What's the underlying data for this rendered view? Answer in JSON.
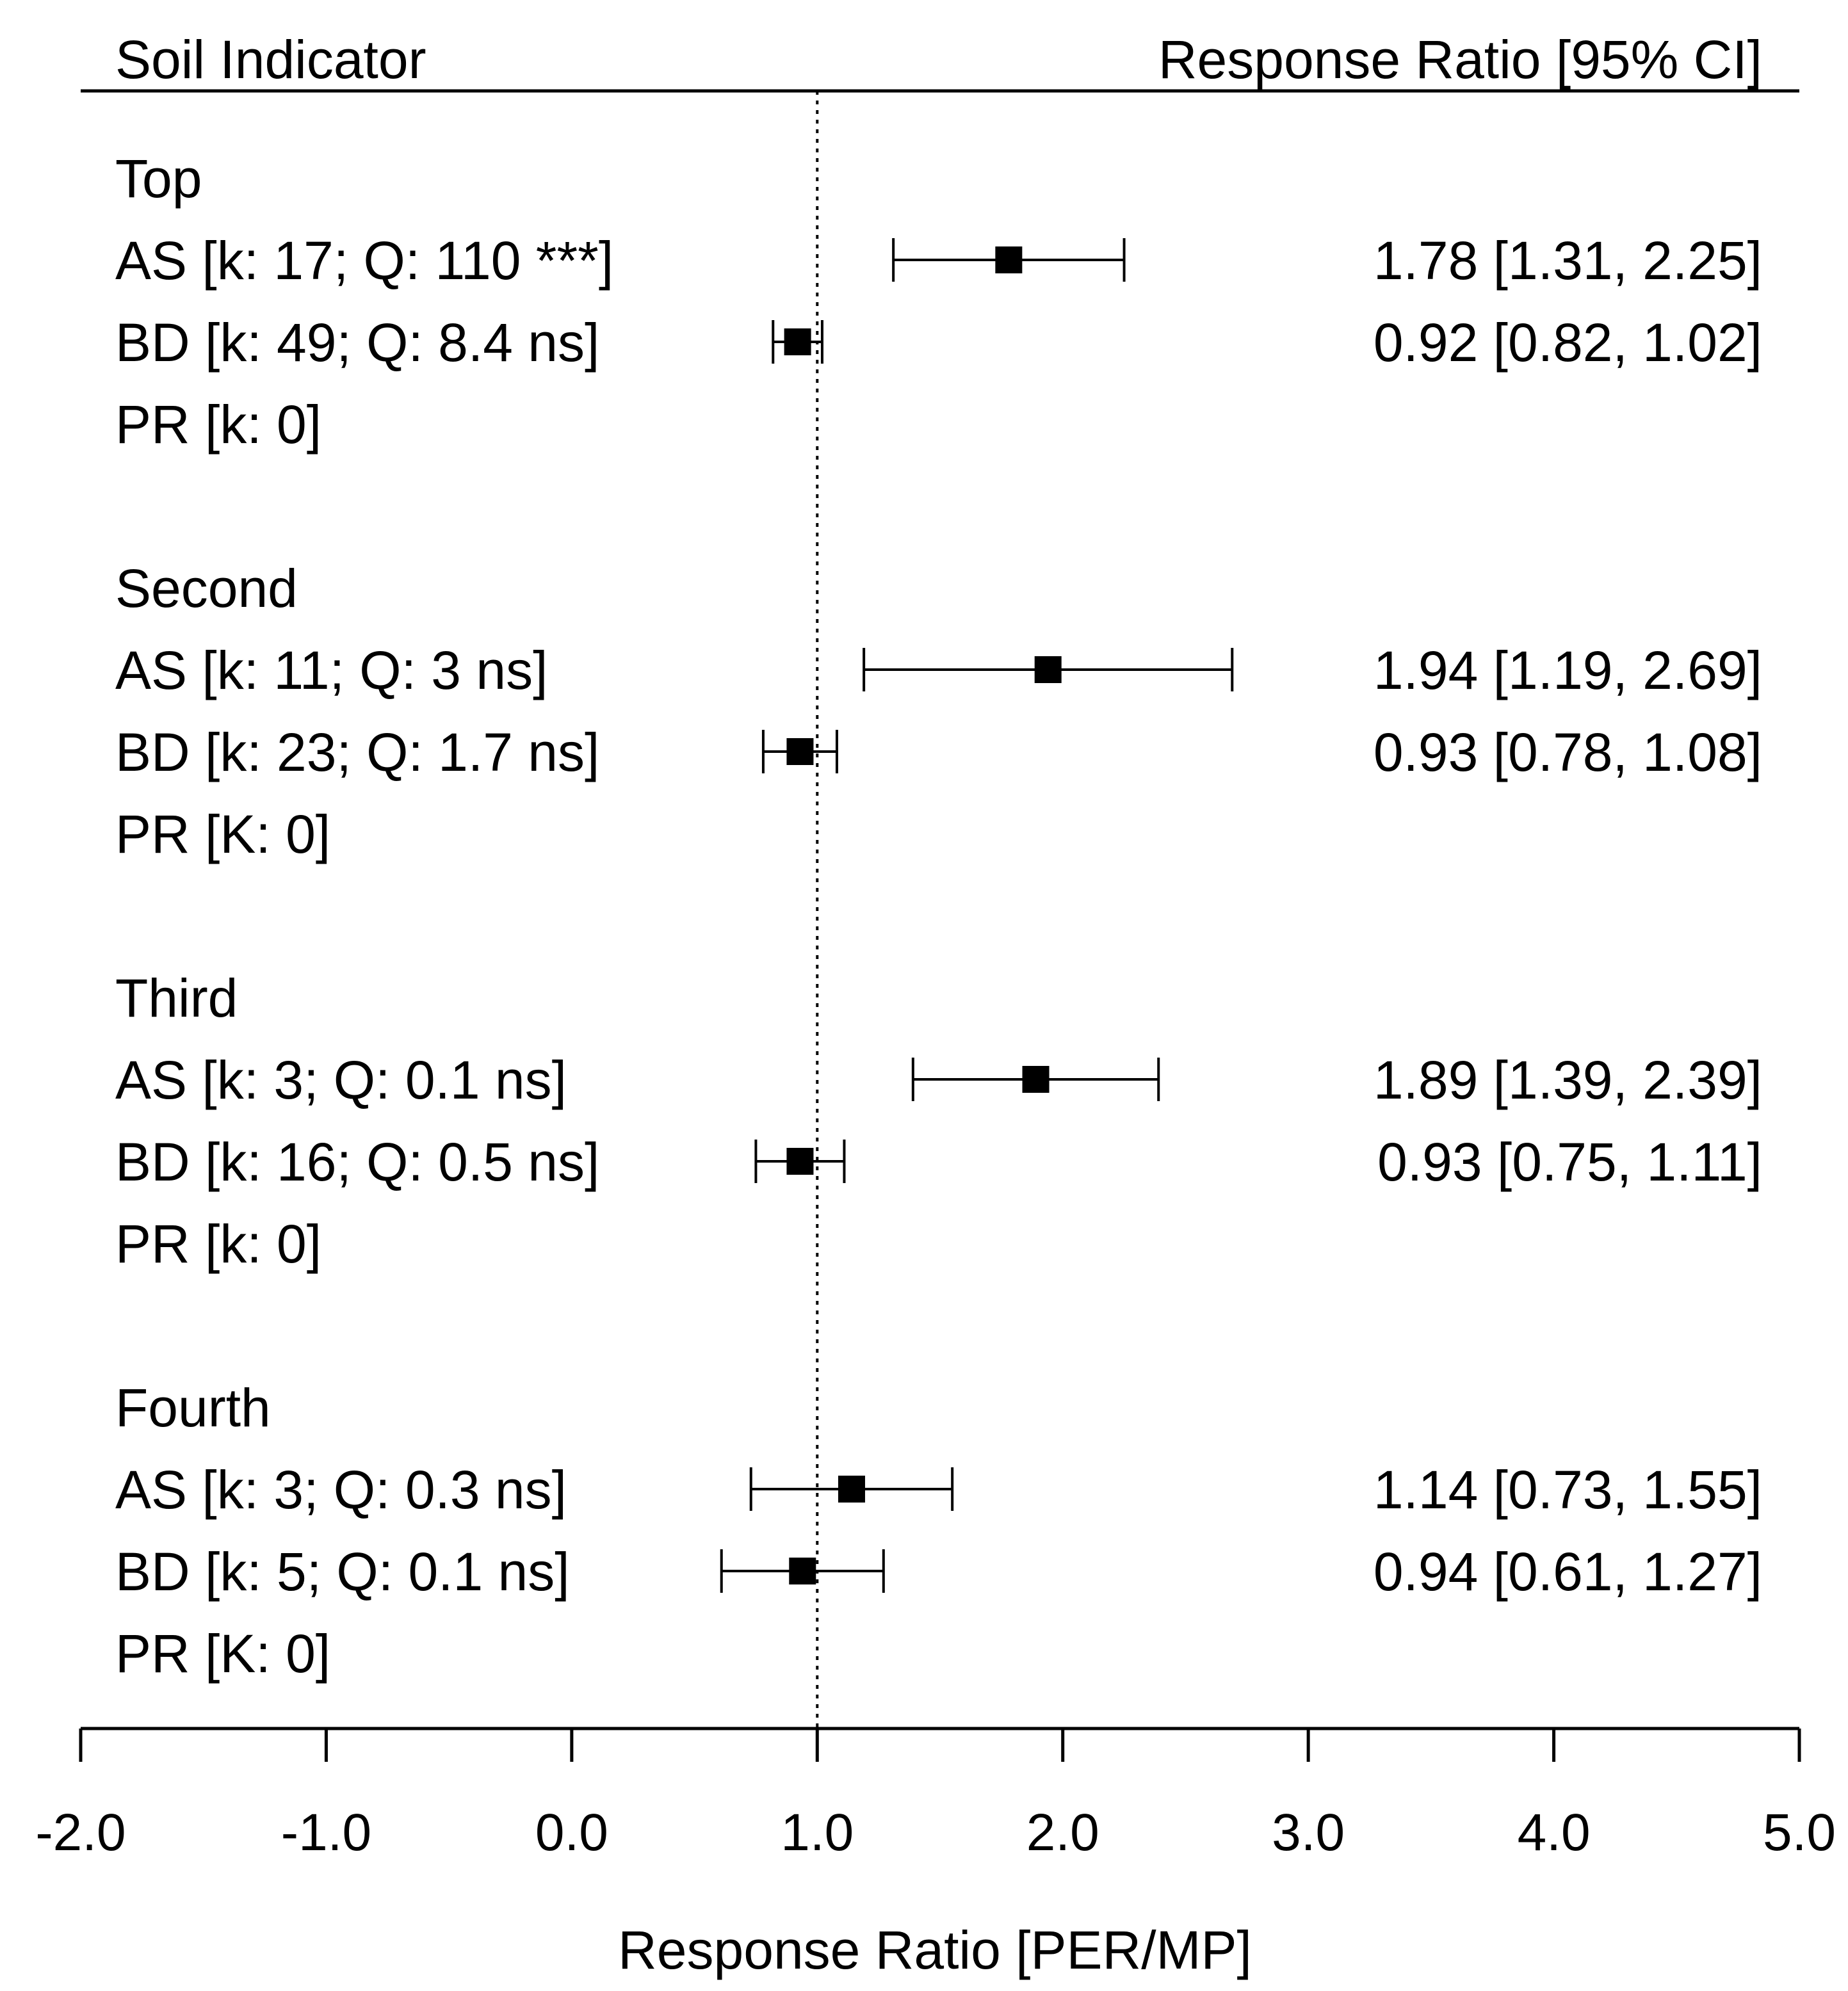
{
  "chart_data": {
    "type": "forest",
    "header": {
      "left": "Soil Indicator",
      "right": "Response Ratio [95% CI]"
    },
    "xlabel": "Response Ratio [PER/MP]",
    "xlim": [
      -2.0,
      5.0
    ],
    "xticks": [
      -2.0,
      -1.0,
      0.0,
      1.0,
      2.0,
      3.0,
      4.0,
      5.0
    ],
    "xtick_labels": [
      "-2.0",
      "-1.0",
      "0.0",
      "1.0",
      "2.0",
      "3.0",
      "4.0",
      "5.0"
    ],
    "reference_line": 1.0,
    "rows": [
      {
        "kind": "group",
        "label": "Top"
      },
      {
        "kind": "item",
        "label": "AS [k: 17; Q: 110 ***]",
        "estimate": 1.78,
        "lower": 1.31,
        "upper": 2.25,
        "ci_text": "1.78 [1.31, 2.25]"
      },
      {
        "kind": "item",
        "label": "BD [k: 49; Q: 8.4 ns]",
        "estimate": 0.92,
        "lower": 0.82,
        "upper": 1.02,
        "ci_text": "0.92 [0.82, 1.02]"
      },
      {
        "kind": "item",
        "label": "PR [k: 0]"
      },
      {
        "kind": "gap"
      },
      {
        "kind": "group",
        "label": "Second"
      },
      {
        "kind": "item",
        "label": "AS [k: 11; Q: 3 ns]",
        "estimate": 1.94,
        "lower": 1.19,
        "upper": 2.69,
        "ci_text": "1.94 [1.19, 2.69]"
      },
      {
        "kind": "item",
        "label": "BD [k: 23; Q: 1.7 ns]",
        "estimate": 0.93,
        "lower": 0.78,
        "upper": 1.08,
        "ci_text": "0.93 [0.78, 1.08]"
      },
      {
        "kind": "item",
        "label": "PR [K: 0]"
      },
      {
        "kind": "gap"
      },
      {
        "kind": "group",
        "label": "Third"
      },
      {
        "kind": "item",
        "label": "AS [k: 3; Q: 0.1 ns]",
        "estimate": 1.89,
        "lower": 1.39,
        "upper": 2.39,
        "ci_text": "1.89 [1.39, 2.39]"
      },
      {
        "kind": "item",
        "label": "BD [k: 16; Q: 0.5 ns]",
        "estimate": 0.93,
        "lower": 0.75,
        "upper": 1.11,
        "ci_text": "0.93 [0.75, 1.11]"
      },
      {
        "kind": "item",
        "label": "PR [k: 0]"
      },
      {
        "kind": "gap"
      },
      {
        "kind": "group",
        "label": "Fourth"
      },
      {
        "kind": "item",
        "label": "AS [k: 3; Q: 0.3 ns]",
        "estimate": 1.14,
        "lower": 0.73,
        "upper": 1.55,
        "ci_text": "1.14 [0.73, 1.55]"
      },
      {
        "kind": "item",
        "label": "BD [k: 5; Q: 0.1 ns]",
        "estimate": 0.94,
        "lower": 0.61,
        "upper": 1.27,
        "ci_text": "0.94 [0.61, 1.27]"
      },
      {
        "kind": "item",
        "label": "PR [K: 0]"
      }
    ]
  }
}
